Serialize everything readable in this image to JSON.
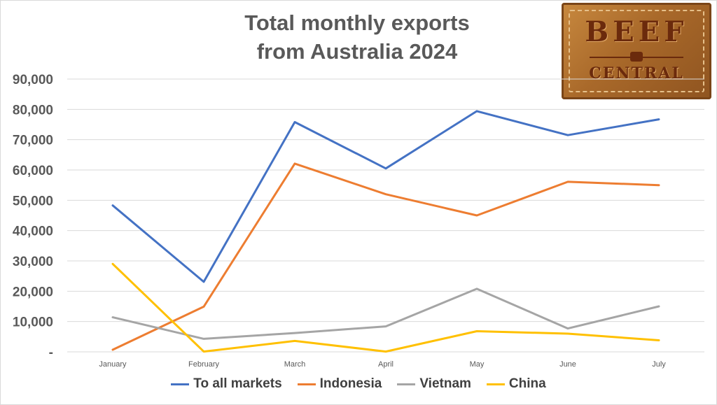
{
  "chart_data": {
    "type": "line",
    "title": "Total monthly exports from Australia 2024",
    "title_lines": [
      "Total monthly exports",
      "from Australia 2024"
    ],
    "categories": [
      "January",
      "February",
      "March",
      "April",
      "May",
      "June",
      "July"
    ],
    "ylim": [
      0,
      90000
    ],
    "yticks": [
      0,
      10000,
      20000,
      30000,
      40000,
      50000,
      60000,
      70000,
      80000,
      90000
    ],
    "ytick_labels": [
      "-",
      "10,000",
      "20,000",
      "30,000",
      "40,000",
      "50,000",
      "60,000",
      "70,000",
      "80,000",
      "90,000"
    ],
    "grid": true,
    "legend_position": "bottom",
    "series": [
      {
        "name": "To all markets",
        "color": "#4472c4",
        "values": [
          48300,
          23100,
          75800,
          60500,
          79400,
          71500,
          76700
        ]
      },
      {
        "name": "Indonesia",
        "color": "#ed7d31",
        "values": [
          700,
          14900,
          62100,
          52000,
          45000,
          56100,
          55000
        ]
      },
      {
        "name": "Vietnam",
        "color": "#a5a5a5",
        "values": [
          11400,
          4300,
          6200,
          8400,
          20800,
          7700,
          15000
        ]
      },
      {
        "name": "China",
        "color": "#ffc000",
        "values": [
          29000,
          100,
          3600,
          100,
          6800,
          6000,
          3800
        ]
      }
    ]
  },
  "logo": {
    "line1": "BEEF",
    "line2": "CENTRAL"
  }
}
